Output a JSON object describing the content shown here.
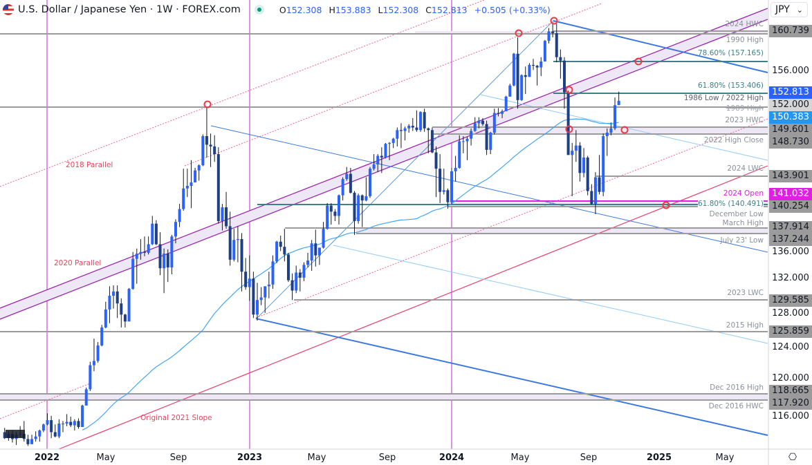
{
  "header": {
    "symbol": "U.S. Dollar / Japanese Yen · 1W · FOREX.com",
    "o_label": "O",
    "o": "152.308",
    "h_label": "H",
    "h": "153.883",
    "l_label": "L",
    "l": "152.308",
    "c_label": "C",
    "c": "152.813",
    "change": "+0.505 (+0.33%)",
    "currency": "JPY",
    "currency_chevron": "⌄"
  },
  "colors": {
    "up": "#2962ff",
    "down": "#1c3f86",
    "sma": "#42a5f5",
    "year_line": "#c026d3",
    "channel": "#9c27b0",
    "fib": "#3d7f8a",
    "level": "#9b9b9b",
    "slope": "#ef3e6a",
    "trend": "#3a78e0",
    "marker": "#f23645"
  },
  "left_labels": {
    "p2018": "2018 Parallel",
    "p2020": "2020 Parallel",
    "slope2021": "Original 2021 Slope"
  },
  "level_labels": {
    "hwc2024": "2024 HWC",
    "high1990": "1990 High",
    "fib786": "78.60% (157.165)",
    "fib618a": "61.80% (153.406)",
    "low1986": "1986 Low / 2022 High",
    "high1989": "1989 High",
    "hwc2023": "2023 HWC",
    "highclose2022": "2022 High Close",
    "lwc2024": "2024 LWC",
    "open2024": "2024 Open",
    "fib618b": "61.80% (140.491)",
    "declow": "December Low",
    "marhigh": "March High",
    "jullow": "July 23' Low",
    "lwc2023": "2023 LWC",
    "high2015": "2015 High",
    "dec2016high": "Dec 2016 High",
    "dec2016hwc": "Dec 2016 HWC"
  },
  "price_badges": {
    "b160": "160.739",
    "b152813": "152.813",
    "b152": "152.000",
    "b150": "150.383",
    "b149": "149.601",
    "b148": "148.730",
    "b143": "143.901",
    "b141": "141.032",
    "b140": "140.254",
    "b137": "137.914",
    "b1372": "137.244",
    "b129": "129.585",
    "b125": "125.859",
    "b118": "118.665",
    "b117": "117.920"
  },
  "y_ticks": [
    "156.000",
    "136.000",
    "132.000",
    "128.000",
    "124.000",
    "120.000",
    "116.000"
  ],
  "x_ticks": [
    "2022",
    "May",
    "Sep",
    "2023",
    "May",
    "Sep",
    "2024",
    "May",
    "Sep",
    "2025",
    "May"
  ],
  "chart_data": {
    "type": "candlestick",
    "interval": "1W",
    "ylabel": "",
    "xlabel": "",
    "ylim": [
      112.5,
      164
    ],
    "grid": false,
    "moving_average": {
      "period": 52
    },
    "levels": [
      160.739,
      157.165,
      153.406,
      152.0,
      149.601,
      148.73,
      143.901,
      141.032,
      140.491,
      140.254,
      137.914,
      137.244,
      129.585,
      125.859,
      118.665,
      117.92
    ],
    "candles": [
      [
        "2021-10-18",
        114.2,
        114.7,
        113.4,
        113.5
      ],
      [
        "2021-10-25",
        113.5,
        114.3,
        113.2,
        114.0
      ],
      [
        "2021-11-01",
        114.0,
        114.4,
        113.0,
        113.4
      ],
      [
        "2021-11-08",
        113.4,
        114.2,
        112.7,
        113.9
      ],
      [
        "2021-11-15",
        113.9,
        114.9,
        113.6,
        114.0
      ],
      [
        "2021-11-22",
        114.0,
        115.5,
        113.1,
        113.4
      ],
      [
        "2021-11-29",
        113.4,
        113.9,
        112.6,
        112.8
      ],
      [
        "2021-12-06",
        112.8,
        113.9,
        112.9,
        113.4
      ],
      [
        "2021-12-13",
        113.4,
        114.3,
        113.1,
        113.7
      ],
      [
        "2021-12-20",
        113.7,
        114.5,
        113.1,
        114.4
      ],
      [
        "2021-12-27",
        114.4,
        115.2,
        114.2,
        115.1
      ],
      [
        "2022-01-03",
        115.1,
        116.4,
        115.0,
        115.6
      ],
      [
        "2022-01-10",
        115.6,
        116.1,
        113.5,
        114.2
      ],
      [
        "2022-01-17",
        114.2,
        115.1,
        113.6,
        113.7
      ],
      [
        "2022-01-24",
        113.7,
        115.7,
        113.5,
        115.2
      ],
      [
        "2022-01-31",
        115.2,
        115.5,
        114.2,
        115.2
      ],
      [
        "2022-02-07",
        115.2,
        116.3,
        114.9,
        115.4
      ],
      [
        "2022-02-14",
        115.4,
        116.0,
        114.8,
        115.0
      ],
      [
        "2022-02-21",
        115.0,
        115.7,
        114.4,
        115.5
      ],
      [
        "2022-02-28",
        115.5,
        115.8,
        114.6,
        114.8
      ],
      [
        "2022-03-07",
        114.8,
        117.4,
        114.8,
        117.3
      ],
      [
        "2022-03-14",
        117.3,
        119.4,
        117.3,
        119.2
      ],
      [
        "2022-03-21",
        119.2,
        122.4,
        119.0,
        122.0
      ],
      [
        "2022-03-28",
        122.0,
        125.1,
        121.3,
        122.5
      ],
      [
        "2022-04-04",
        122.5,
        124.7,
        122.3,
        124.3
      ],
      [
        "2022-04-11",
        124.3,
        126.7,
        124.2,
        126.4
      ],
      [
        "2022-04-18",
        126.4,
        129.4,
        126.3,
        128.5
      ],
      [
        "2022-04-25",
        128.5,
        131.2,
        126.9,
        130.1
      ],
      [
        "2022-05-02",
        130.1,
        131.3,
        128.6,
        130.6
      ],
      [
        "2022-05-09",
        130.6,
        131.3,
        127.5,
        129.2
      ],
      [
        "2022-05-16",
        129.2,
        129.8,
        126.4,
        127.9
      ],
      [
        "2022-05-23",
        127.9,
        128.0,
        126.4,
        127.1
      ],
      [
        "2022-05-30",
        127.1,
        131.0,
        127.1,
        130.9
      ],
      [
        "2022-06-06",
        130.9,
        135.2,
        130.8,
        134.4
      ],
      [
        "2022-06-13",
        134.4,
        135.6,
        131.5,
        135.0
      ],
      [
        "2022-06-20",
        135.0,
        136.7,
        134.3,
        135.2
      ],
      [
        "2022-06-27",
        135.2,
        137.0,
        134.7,
        135.1
      ],
      [
        "2022-07-04",
        135.1,
        137.0,
        134.9,
        136.1
      ],
      [
        "2022-07-11",
        136.1,
        139.4,
        136.0,
        138.5
      ],
      [
        "2022-07-18",
        138.5,
        138.9,
        136.0,
        136.1
      ],
      [
        "2022-07-25",
        136.1,
        137.5,
        132.5,
        133.3
      ],
      [
        "2022-08-01",
        133.3,
        135.6,
        130.4,
        135.0
      ],
      [
        "2022-08-08",
        135.0,
        135.5,
        131.7,
        133.4
      ],
      [
        "2022-08-15",
        133.4,
        137.2,
        132.6,
        137.0
      ],
      [
        "2022-08-22",
        137.0,
        139.0,
        136.2,
        138.7
      ],
      [
        "2022-08-29",
        138.7,
        140.8,
        138.1,
        140.2
      ],
      [
        "2022-09-05",
        140.2,
        144.9,
        140.0,
        142.6
      ],
      [
        "2022-09-12",
        142.6,
        144.9,
        141.6,
        142.9
      ],
      [
        "2022-09-19",
        142.9,
        145.9,
        140.3,
        143.3
      ],
      [
        "2022-09-26",
        143.3,
        145.0,
        143.3,
        144.7
      ],
      [
        "2022-10-03",
        144.7,
        145.4,
        143.5,
        145.3
      ],
      [
        "2022-10-10",
        145.3,
        148.9,
        145.2,
        148.7
      ],
      [
        "2022-10-17",
        148.7,
        152.0,
        146.2,
        147.7
      ],
      [
        "2022-10-24",
        147.7,
        149.0,
        145.1,
        147.5
      ],
      [
        "2022-10-31",
        147.5,
        148.8,
        145.7,
        146.6
      ],
      [
        "2022-11-07",
        146.6,
        147.4,
        138.5,
        138.8
      ],
      [
        "2022-11-14",
        138.8,
        140.8,
        137.7,
        140.4
      ],
      [
        "2022-11-21",
        140.4,
        142.2,
        137.9,
        138.2
      ],
      [
        "2022-11-28",
        138.2,
        139.9,
        133.6,
        134.3
      ],
      [
        "2022-12-05",
        134.3,
        137.9,
        134.1,
        136.6
      ],
      [
        "2022-12-12",
        136.6,
        138.2,
        134.0,
        136.7
      ],
      [
        "2022-12-19",
        136.7,
        137.4,
        130.6,
        132.9
      ],
      [
        "2022-12-26",
        132.9,
        134.5,
        130.8,
        131.1
      ],
      [
        "2023-01-02",
        131.1,
        134.8,
        129.5,
        132.1
      ],
      [
        "2023-01-09",
        132.1,
        132.9,
        127.5,
        127.9
      ],
      [
        "2023-01-16",
        127.9,
        131.6,
        127.2,
        129.6
      ],
      [
        "2023-01-23",
        129.6,
        131.1,
        129.0,
        129.9
      ],
      [
        "2023-01-30",
        129.9,
        131.2,
        128.1,
        131.2
      ],
      [
        "2023-02-06",
        131.2,
        132.9,
        129.8,
        131.4
      ],
      [
        "2023-02-13",
        131.4,
        134.8,
        130.9,
        134.1
      ],
      [
        "2023-02-20",
        134.1,
        136.5,
        133.9,
        136.4
      ],
      [
        "2023-02-27",
        136.4,
        137.1,
        135.3,
        135.8
      ],
      [
        "2023-03-06",
        135.8,
        137.9,
        134.1,
        134.9
      ],
      [
        "2023-03-13",
        134.9,
        135.1,
        131.7,
        131.9
      ],
      [
        "2023-03-20",
        131.9,
        132.7,
        129.6,
        130.7
      ],
      [
        "2023-03-27",
        130.7,
        133.6,
        130.4,
        132.8
      ],
      [
        "2023-04-03",
        132.8,
        133.2,
        130.6,
        132.2
      ],
      [
        "2023-04-10",
        132.2,
        134.0,
        131.8,
        133.7
      ],
      [
        "2023-04-17",
        133.7,
        135.1,
        133.4,
        134.2
      ],
      [
        "2023-04-24",
        134.2,
        136.6,
        133.0,
        136.2
      ],
      [
        "2023-05-01",
        136.2,
        137.8,
        133.5,
        134.8
      ],
      [
        "2023-05-08",
        134.8,
        135.7,
        133.7,
        135.7
      ],
      [
        "2023-05-15",
        135.7,
        138.7,
        135.6,
        137.9
      ],
      [
        "2023-05-22",
        137.9,
        140.9,
        137.8,
        140.6
      ],
      [
        "2023-05-29",
        140.6,
        140.9,
        138.4,
        139.9
      ],
      [
        "2023-06-05",
        139.9,
        140.2,
        138.8,
        139.4
      ],
      [
        "2023-06-12",
        139.4,
        141.9,
        138.4,
        141.8
      ],
      [
        "2023-06-19",
        141.8,
        143.9,
        141.2,
        143.7
      ],
      [
        "2023-06-26",
        143.7,
        145.1,
        143.5,
        144.3
      ],
      [
        "2023-07-03",
        144.3,
        145.0,
        142.0,
        142.1
      ],
      [
        "2023-07-10",
        142.1,
        142.3,
        137.2,
        138.8
      ],
      [
        "2023-07-17",
        138.8,
        142.0,
        138.5,
        141.8
      ],
      [
        "2023-07-24",
        141.8,
        141.9,
        138.1,
        141.2
      ],
      [
        "2023-07-31",
        141.2,
        143.9,
        141.1,
        141.7
      ],
      [
        "2023-08-07",
        141.7,
        145.1,
        141.5,
        144.9
      ],
      [
        "2023-08-14",
        144.9,
        146.6,
        144.7,
        145.4
      ],
      [
        "2023-08-21",
        145.4,
        146.6,
        144.5,
        146.4
      ],
      [
        "2023-08-28",
        146.4,
        147.4,
        144.4,
        146.2
      ],
      [
        "2023-09-04",
        146.2,
        147.9,
        146.1,
        147.8
      ],
      [
        "2023-09-11",
        147.8,
        148.0,
        145.9,
        147.9
      ],
      [
        "2023-09-18",
        147.9,
        148.5,
        147.3,
        148.4
      ],
      [
        "2023-09-25",
        148.4,
        149.7,
        147.5,
        149.4
      ],
      [
        "2023-10-02",
        149.4,
        150.2,
        147.3,
        149.3
      ],
      [
        "2023-10-09",
        149.3,
        149.8,
        148.2,
        149.6
      ],
      [
        "2023-10-16",
        149.6,
        150.1,
        149.1,
        149.9
      ],
      [
        "2023-10-23",
        149.9,
        150.8,
        149.3,
        149.7
      ],
      [
        "2023-10-30",
        149.7,
        151.7,
        149.2,
        149.4
      ],
      [
        "2023-11-06",
        149.4,
        151.6,
        149.2,
        151.5
      ],
      [
        "2023-11-13",
        151.5,
        151.9,
        149.2,
        149.6
      ],
      [
        "2023-11-20",
        149.6,
        149.7,
        146.7,
        149.4
      ],
      [
        "2023-11-27",
        149.4,
        149.7,
        146.7,
        146.8
      ],
      [
        "2023-12-04",
        146.8,
        147.5,
        141.6,
        144.9
      ],
      [
        "2023-12-11",
        144.9,
        146.6,
        140.9,
        142.2
      ],
      [
        "2023-12-18",
        142.2,
        144.9,
        141.9,
        142.4
      ],
      [
        "2023-12-25",
        142.4,
        142.6,
        140.25,
        141.0
      ],
      [
        "2024-01-01",
        141.0,
        145.0,
        140.8,
        144.6
      ],
      [
        "2024-01-08",
        144.6,
        146.4,
        143.4,
        145.0
      ],
      [
        "2024-01-15",
        145.0,
        148.8,
        144.9,
        148.1
      ],
      [
        "2024-01-22",
        148.1,
        148.7,
        146.7,
        148.1
      ],
      [
        "2024-01-29",
        148.1,
        148.6,
        145.9,
        148.4
      ],
      [
        "2024-02-05",
        148.4,
        149.6,
        147.6,
        149.3
      ],
      [
        "2024-02-12",
        149.3,
        150.9,
        149.2,
        150.2
      ],
      [
        "2024-02-19",
        150.2,
        150.9,
        149.6,
        150.5
      ],
      [
        "2024-02-26",
        150.5,
        150.8,
        149.9,
        150.1
      ],
      [
        "2024-03-04",
        150.1,
        150.5,
        146.5,
        147.1
      ],
      [
        "2024-03-11",
        147.1,
        149.2,
        146.6,
        149.1
      ],
      [
        "2024-03-18",
        149.1,
        151.9,
        148.9,
        151.4
      ],
      [
        "2024-03-25",
        151.4,
        151.97,
        151.0,
        151.3
      ],
      [
        "2024-04-01",
        151.3,
        151.8,
        150.8,
        151.6
      ],
      [
        "2024-04-08",
        151.6,
        153.4,
        151.6,
        153.3
      ],
      [
        "2024-04-15",
        153.3,
        154.8,
        153.3,
        154.6
      ],
      [
        "2024-04-22",
        154.6,
        158.4,
        154.5,
        158.3
      ],
      [
        "2024-04-29",
        158.3,
        160.2,
        151.9,
        152.9
      ],
      [
        "2024-05-06",
        152.9,
        155.9,
        152.8,
        155.8
      ],
      [
        "2024-05-13",
        155.8,
        156.8,
        153.6,
        155.6
      ],
      [
        "2024-05-20",
        155.6,
        157.2,
        155.6,
        157.0
      ],
      [
        "2024-05-27",
        157.0,
        157.7,
        156.4,
        156.9
      ],
      [
        "2024-06-03",
        156.9,
        157.0,
        154.6,
        156.7
      ],
      [
        "2024-06-10",
        156.7,
        157.9,
        155.7,
        157.4
      ],
      [
        "2024-06-17",
        157.4,
        159.9,
        157.4,
        159.8
      ],
      [
        "2024-06-24",
        159.8,
        161.3,
        159.5,
        160.9
      ],
      [
        "2024-07-01",
        160.9,
        161.95,
        160.2,
        160.7
      ],
      [
        "2024-07-08",
        160.7,
        161.8,
        157.3,
        157.9
      ],
      [
        "2024-07-15",
        157.9,
        158.8,
        155.4,
        157.5
      ],
      [
        "2024-07-22",
        157.5,
        157.9,
        151.9,
        153.8
      ],
      [
        "2024-07-29",
        153.8,
        154.0,
        146.5,
        146.5
      ],
      [
        "2024-08-05",
        146.5,
        147.9,
        141.7,
        147.0
      ],
      [
        "2024-08-12",
        147.0,
        149.4,
        145.7,
        147.6
      ],
      [
        "2024-08-19",
        147.6,
        148.0,
        143.4,
        144.4
      ],
      [
        "2024-08-26",
        144.4,
        147.3,
        143.9,
        146.2
      ],
      [
        "2024-09-02",
        146.2,
        146.4,
        141.8,
        142.3
      ],
      [
        "2024-09-09",
        142.3,
        143.1,
        140.7,
        140.8
      ],
      [
        "2024-09-16",
        140.8,
        144.5,
        139.6,
        143.9
      ],
      [
        "2024-09-23",
        143.9,
        146.5,
        141.9,
        142.2
      ],
      [
        "2024-09-30",
        142.2,
        149.0,
        141.7,
        148.7
      ],
      [
        "2024-10-07",
        148.7,
        149.6,
        146.4,
        149.1
      ],
      [
        "2024-10-14",
        149.1,
        150.3,
        148.8,
        149.6
      ],
      [
        "2024-10-21",
        149.6,
        153.2,
        149.4,
        152.3
      ],
      [
        "2024-10-28",
        152.308,
        153.883,
        152.308,
        152.813
      ]
    ]
  }
}
